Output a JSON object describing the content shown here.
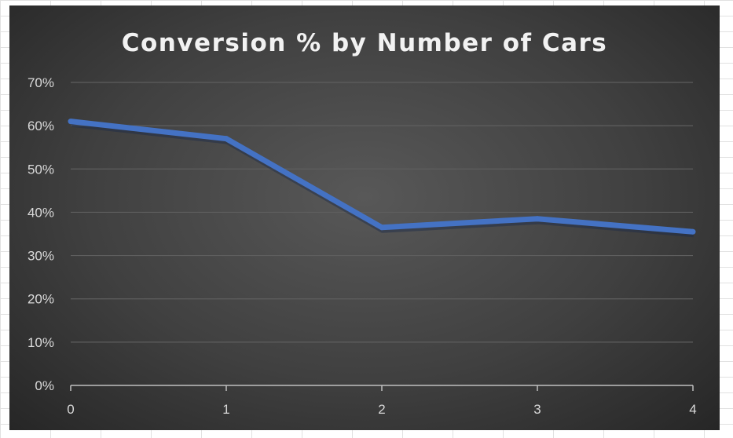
{
  "chart_data": {
    "type": "line",
    "title": "Conversion % by Number of Cars",
    "xlabel": "",
    "ylabel": "",
    "x": [
      "0",
      "1",
      "2",
      "3",
      "4"
    ],
    "series": [
      {
        "values": [
          0.61,
          0.57,
          0.365,
          0.385,
          0.355
        ]
      }
    ],
    "ylim": [
      0,
      0.7
    ],
    "yticks": [
      "0%",
      "10%",
      "20%",
      "30%",
      "40%",
      "50%",
      "60%",
      "70%"
    ],
    "grid": true,
    "colors": {
      "line": "#4472c4",
      "background": "#404040",
      "grid": "#5e5e5e",
      "text": "#d9d9d9"
    }
  }
}
